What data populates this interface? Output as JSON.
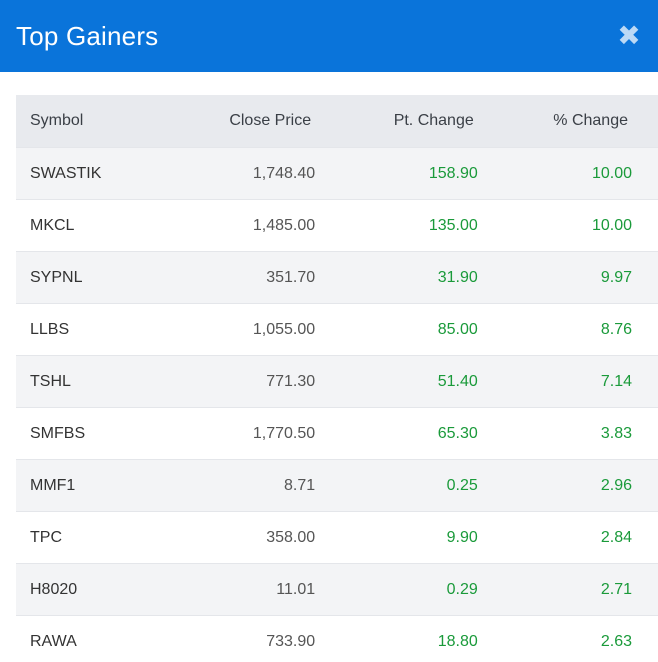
{
  "header": {
    "title": "Top Gainers",
    "close_icon": "close-icon"
  },
  "table": {
    "columns": [
      "Symbol",
      "Close Price",
      "Pt. Change",
      "% Change"
    ],
    "rows": [
      {
        "symbol": "SWASTIK",
        "close": "1,748.40",
        "pt_change": "158.90",
        "pct_change": "10.00"
      },
      {
        "symbol": "MKCL",
        "close": "1,485.00",
        "pt_change": "135.00",
        "pct_change": "10.00"
      },
      {
        "symbol": "SYPNL",
        "close": "351.70",
        "pt_change": "31.90",
        "pct_change": "9.97"
      },
      {
        "symbol": "LLBS",
        "close": "1,055.00",
        "pt_change": "85.00",
        "pct_change": "8.76"
      },
      {
        "symbol": "TSHL",
        "close": "771.30",
        "pt_change": "51.40",
        "pct_change": "7.14"
      },
      {
        "symbol": "SMFBS",
        "close": "1,770.50",
        "pt_change": "65.30",
        "pct_change": "3.83"
      },
      {
        "symbol": "MMF1",
        "close": "8.71",
        "pt_change": "0.25",
        "pct_change": "2.96"
      },
      {
        "symbol": "TPC",
        "close": "358.00",
        "pt_change": "9.90",
        "pct_change": "2.84"
      },
      {
        "symbol": "H8020",
        "close": "11.01",
        "pt_change": "0.29",
        "pct_change": "2.71"
      },
      {
        "symbol": "RAWA",
        "close": "733.90",
        "pt_change": "18.80",
        "pct_change": "2.63"
      }
    ]
  },
  "colors": {
    "header_bg": "#0a74da",
    "gain": "#1a9a3a",
    "stripe": "#f3f4f6"
  }
}
